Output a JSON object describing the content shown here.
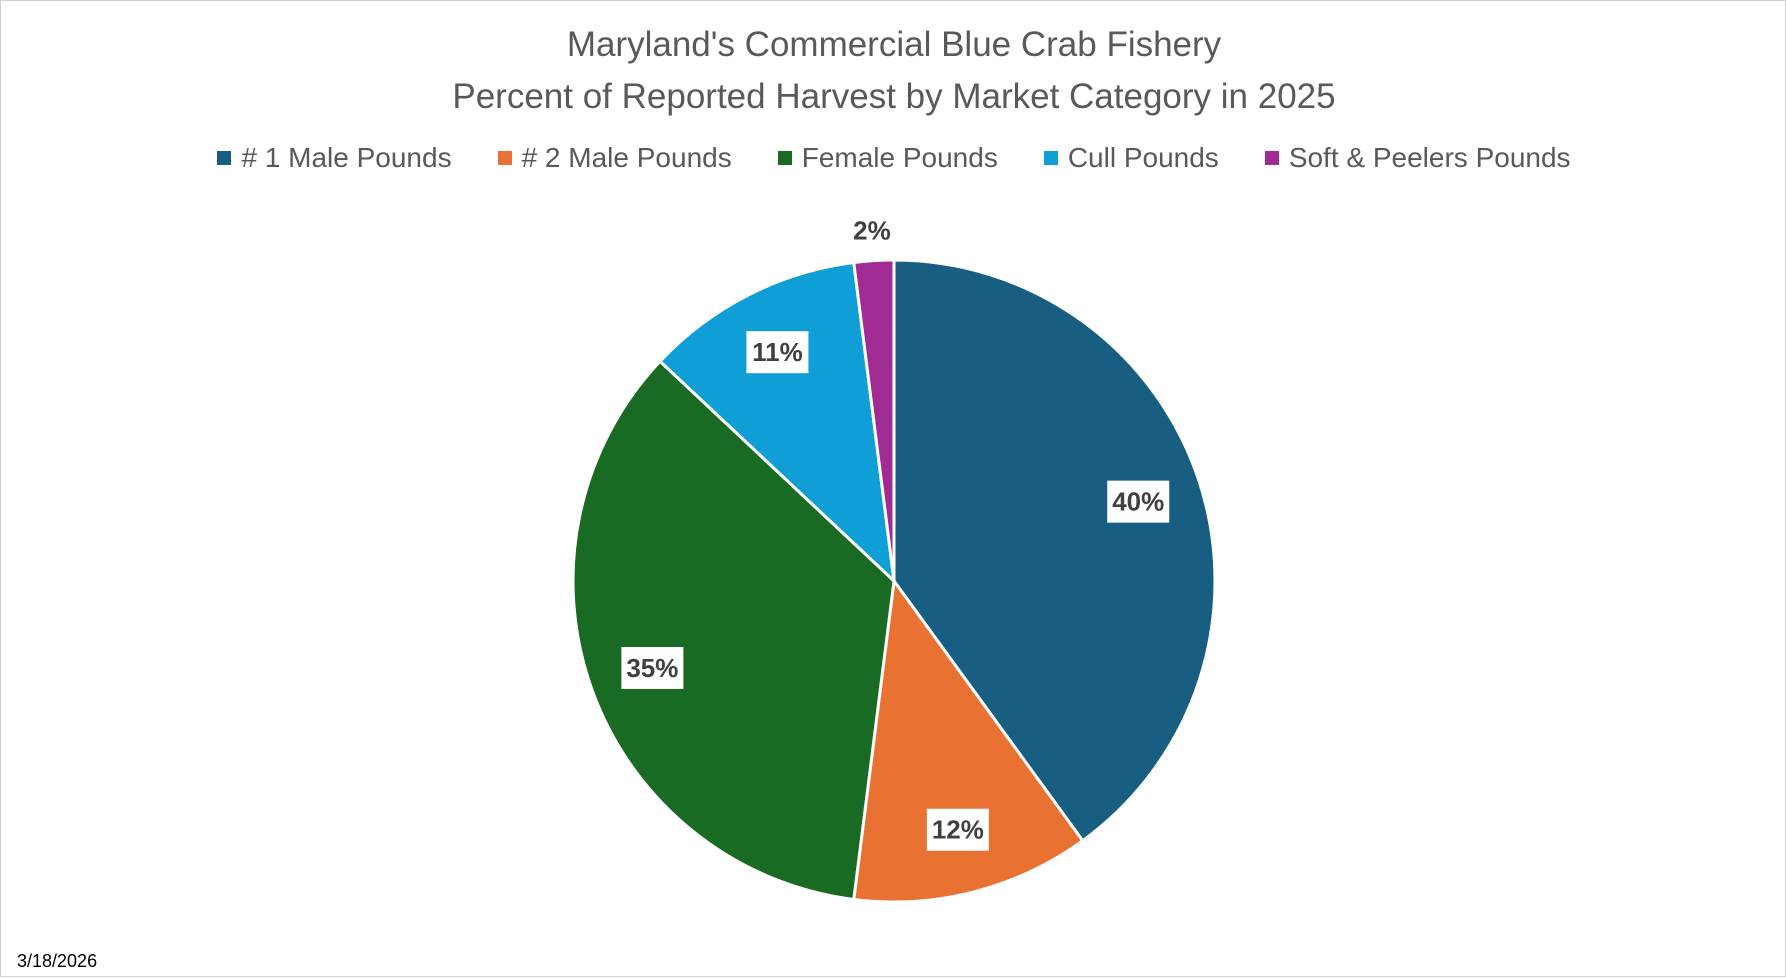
{
  "chart_data": {
    "type": "pie",
    "title": "Maryland's Commercial Blue Crab Fishery",
    "subtitle": "Percent of Reported Harvest by Market Category in 2025",
    "categories": [
      "# 1 Male Pounds",
      "# 2 Male Pounds",
      "Female Pounds",
      "Cull Pounds",
      "Soft & Peelers Pounds"
    ],
    "values": [
      40,
      12,
      35,
      11,
      2
    ],
    "labels": [
      "40%",
      "12%",
      "35%",
      "11%",
      "2%"
    ],
    "colors": [
      "#175E82",
      "#E97132",
      "#196B24",
      "#0F9ED5",
      "#A02B93"
    ],
    "legend_position": "top"
  },
  "footer": {
    "date": "3/18/2026"
  }
}
